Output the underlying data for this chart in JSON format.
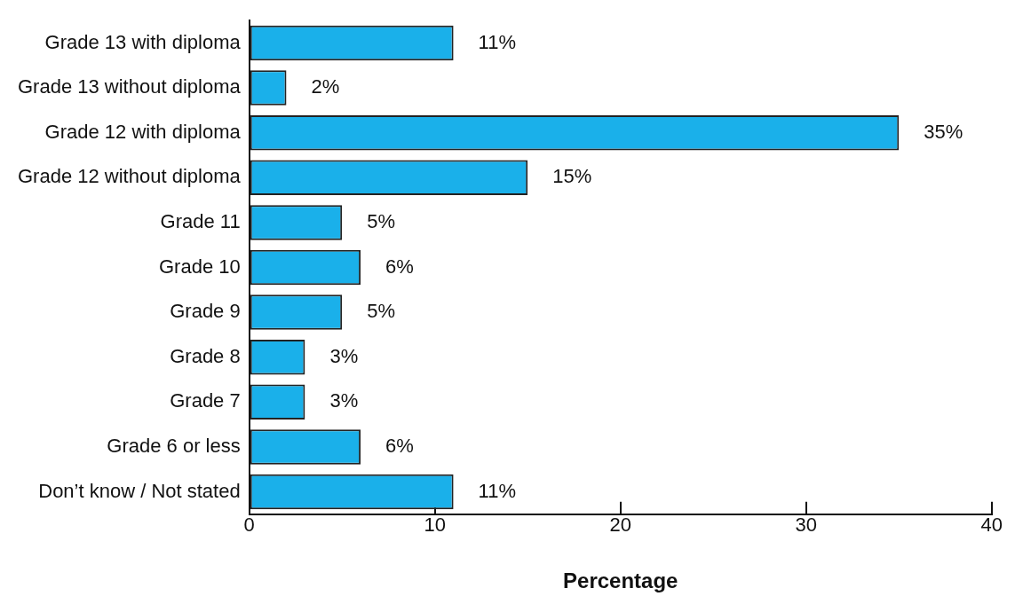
{
  "chart_data": {
    "type": "bar",
    "orientation": "horizontal",
    "xlabel": "Percentage",
    "categories": [
      "Grade 13 with diploma",
      "Grade 13 without diploma",
      "Grade 12 with diploma",
      "Grade 12 without diploma",
      "Grade 11",
      "Grade 10",
      "Grade 9",
      "Grade 8",
      "Grade 7",
      "Grade 6 or less",
      "Don’t know / Not stated"
    ],
    "values": [
      11,
      2,
      35,
      15,
      5,
      6,
      5,
      3,
      3,
      6,
      11
    ],
    "value_labels": [
      "11%",
      "2%",
      "35%",
      "15%",
      "5%",
      "6%",
      "5%",
      "3%",
      "3%",
      "6%",
      "11%"
    ],
    "color": "#1ab0ea",
    "xlim": [
      0,
      40
    ],
    "xticks": [
      0,
      10,
      20,
      30,
      40
    ],
    "grid": false,
    "legend": false
  }
}
